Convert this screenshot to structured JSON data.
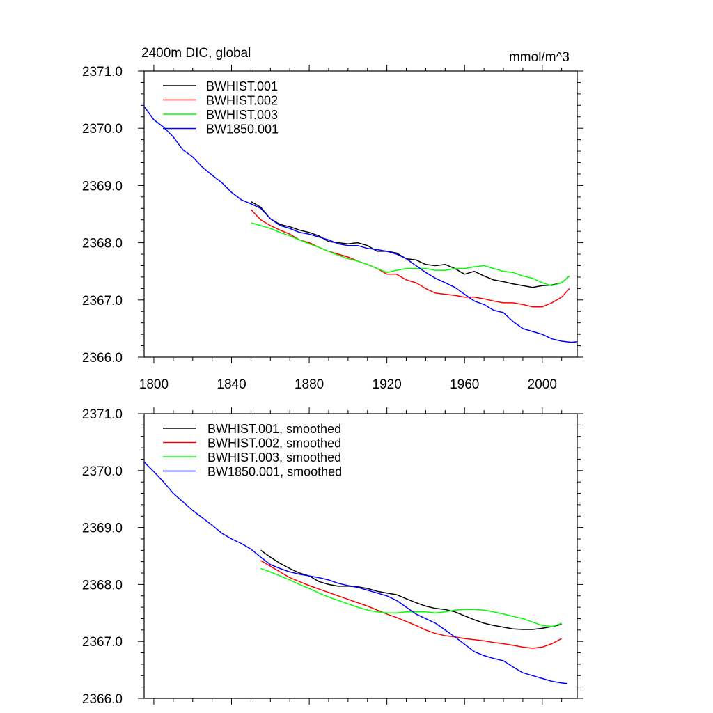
{
  "header": {
    "title": "2400m DIC, global",
    "units": "mmol/m^3"
  },
  "colors": {
    "BWHIST.001": "#000000",
    "BWHIST.002": "#ff0000",
    "BWHIST.003": "#00ff00",
    "BW1850.001": "#0000ff"
  },
  "chart_data": [
    {
      "type": "line",
      "title": "2400m DIC, global",
      "units": "mmol/m^3",
      "xlim": [
        1795,
        2018
      ],
      "ylim": [
        2366.0,
        2371.0
      ],
      "x_ticks": [
        "1800",
        "1840",
        "1880",
        "1920",
        "1960",
        "2000"
      ],
      "y_ticks": [
        "2366.0",
        "2367.0",
        "2368.0",
        "2369.0",
        "2370.0",
        "2371.0"
      ],
      "legend_position": "top-left",
      "series": [
        {
          "name": "BWHIST.001",
          "color": "#000000",
          "x": [
            1850,
            1855,
            1860,
            1865,
            1870,
            1875,
            1880,
            1885,
            1890,
            1895,
            1900,
            1905,
            1910,
            1915,
            1920,
            1925,
            1930,
            1935,
            1940,
            1945,
            1950,
            1955,
            1960,
            1965,
            1970,
            1975,
            1980,
            1985,
            1990,
            1995,
            2000,
            2005,
            2010,
            2014
          ],
          "y": [
            2368.72,
            2368.62,
            2368.42,
            2368.32,
            2368.28,
            2368.22,
            2368.18,
            2368.12,
            2368.02,
            2368.0,
            2367.98,
            2368.0,
            2367.95,
            2367.85,
            2367.85,
            2367.82,
            2367.72,
            2367.7,
            2367.62,
            2367.6,
            2367.62,
            2367.55,
            2367.45,
            2367.5,
            2367.42,
            2367.35,
            2367.32,
            2367.28,
            2367.25,
            2367.22,
            2367.25,
            2367.26,
            2367.3,
            2367.42
          ]
        },
        {
          "name": "BWHIST.002",
          "color": "#ff0000",
          "x": [
            1850,
            1855,
            1860,
            1865,
            1870,
            1875,
            1880,
            1885,
            1890,
            1895,
            1900,
            1905,
            1910,
            1915,
            1920,
            1925,
            1930,
            1935,
            1940,
            1945,
            1950,
            1955,
            1960,
            1965,
            1970,
            1975,
            1980,
            1985,
            1990,
            1995,
            2000,
            2005,
            2010,
            2014
          ],
          "y": [
            2368.58,
            2368.4,
            2368.3,
            2368.22,
            2368.15,
            2368.05,
            2368.0,
            2367.92,
            2367.85,
            2367.8,
            2367.75,
            2367.68,
            2367.62,
            2367.55,
            2367.45,
            2367.45,
            2367.35,
            2367.3,
            2367.2,
            2367.12,
            2367.1,
            2367.08,
            2367.05,
            2367.05,
            2367.02,
            2366.98,
            2366.95,
            2366.95,
            2366.92,
            2366.88,
            2366.88,
            2366.95,
            2367.05,
            2367.2
          ]
        },
        {
          "name": "BWHIST.003",
          "color": "#00ff00",
          "x": [
            1850,
            1855,
            1860,
            1865,
            1870,
            1875,
            1880,
            1885,
            1890,
            1895,
            1900,
            1905,
            1910,
            1915,
            1920,
            1925,
            1930,
            1935,
            1940,
            1945,
            1950,
            1955,
            1960,
            1965,
            1970,
            1975,
            1980,
            1985,
            1990,
            1995,
            2000,
            2005,
            2010,
            2014
          ],
          "y": [
            2368.35,
            2368.3,
            2368.25,
            2368.18,
            2368.12,
            2368.05,
            2367.98,
            2367.92,
            2367.85,
            2367.78,
            2367.72,
            2367.68,
            2367.62,
            2367.55,
            2367.48,
            2367.52,
            2367.55,
            2367.55,
            2367.55,
            2367.52,
            2367.52,
            2367.55,
            2367.55,
            2367.58,
            2367.6,
            2367.55,
            2367.5,
            2367.48,
            2367.42,
            2367.38,
            2367.3,
            2367.25,
            2367.3,
            2367.42
          ]
        },
        {
          "name": "BW1850.001",
          "color": "#0000ff",
          "x": [
            1795,
            1800,
            1805,
            1810,
            1815,
            1820,
            1825,
            1830,
            1835,
            1840,
            1845,
            1850,
            1855,
            1860,
            1865,
            1870,
            1875,
            1880,
            1885,
            1890,
            1895,
            1900,
            1905,
            1910,
            1915,
            1920,
            1925,
            1930,
            1935,
            1940,
            1945,
            1950,
            1955,
            1960,
            1965,
            1970,
            1975,
            1980,
            1985,
            1990,
            1995,
            2000,
            2005,
            2010,
            2015,
            2018
          ],
          "y": [
            2370.38,
            2370.15,
            2370.02,
            2369.85,
            2369.62,
            2369.5,
            2369.32,
            2369.18,
            2369.05,
            2368.88,
            2368.75,
            2368.68,
            2368.6,
            2368.42,
            2368.3,
            2368.25,
            2368.18,
            2368.15,
            2368.1,
            2368.05,
            2367.98,
            2367.95,
            2367.95,
            2367.9,
            2367.88,
            2367.85,
            2367.8,
            2367.72,
            2367.6,
            2367.48,
            2367.38,
            2367.3,
            2367.22,
            2367.1,
            2366.98,
            2366.92,
            2366.82,
            2366.78,
            2366.62,
            2366.5,
            2366.45,
            2366.4,
            2366.32,
            2366.28,
            2366.26,
            2366.27
          ]
        }
      ]
    },
    {
      "type": "line",
      "xlim": [
        1795,
        2018
      ],
      "ylim": [
        2366.0,
        2371.0
      ],
      "y_ticks": [
        "2366.0",
        "2367.0",
        "2368.0",
        "2369.0",
        "2370.0",
        "2371.0"
      ],
      "legend_position": "top-left",
      "series": [
        {
          "name": "BWHIST.001, smoothed",
          "color": "#000000",
          "x": [
            1855,
            1860,
            1865,
            1870,
            1875,
            1880,
            1885,
            1890,
            1895,
            1900,
            1905,
            1910,
            1915,
            1920,
            1925,
            1930,
            1935,
            1940,
            1945,
            1950,
            1955,
            1960,
            1965,
            1970,
            1975,
            1980,
            1985,
            1990,
            1995,
            2000,
            2005,
            2010
          ],
          "y": [
            2368.6,
            2368.48,
            2368.37,
            2368.28,
            2368.2,
            2368.15,
            2368.05,
            2368.0,
            2367.97,
            2367.97,
            2367.96,
            2367.93,
            2367.88,
            2367.85,
            2367.82,
            2367.75,
            2367.68,
            2367.62,
            2367.58,
            2367.56,
            2367.52,
            2367.45,
            2367.38,
            2367.32,
            2367.28,
            2367.25,
            2367.22,
            2367.21,
            2367.21,
            2367.23,
            2367.26,
            2367.3
          ]
        },
        {
          "name": "BWHIST.002, smoothed",
          "color": "#ff0000",
          "x": [
            1855,
            1860,
            1865,
            1870,
            1875,
            1880,
            1885,
            1890,
            1895,
            1900,
            1905,
            1910,
            1915,
            1920,
            1925,
            1930,
            1935,
            1940,
            1945,
            1950,
            1955,
            1960,
            1965,
            1970,
            1975,
            1980,
            1985,
            1990,
            1995,
            2000,
            2005,
            2010
          ],
          "y": [
            2368.42,
            2368.32,
            2368.22,
            2368.12,
            2368.05,
            2367.98,
            2367.92,
            2367.86,
            2367.8,
            2367.74,
            2367.68,
            2367.62,
            2367.55,
            2367.48,
            2367.42,
            2367.35,
            2367.28,
            2367.2,
            2367.14,
            2367.1,
            2367.08,
            2367.05,
            2367.03,
            2367.01,
            2366.98,
            2366.96,
            2366.93,
            2366.9,
            2366.88,
            2366.9,
            2366.96,
            2367.05
          ]
        },
        {
          "name": "BWHIST.003, smoothed",
          "color": "#00ff00",
          "x": [
            1855,
            1860,
            1865,
            1870,
            1875,
            1880,
            1885,
            1890,
            1895,
            1900,
            1905,
            1910,
            1915,
            1920,
            1925,
            1930,
            1935,
            1940,
            1945,
            1950,
            1955,
            1960,
            1965,
            1970,
            1975,
            1980,
            1985,
            1990,
            1995,
            2000,
            2005,
            2010
          ],
          "y": [
            2368.28,
            2368.22,
            2368.15,
            2368.08,
            2368.0,
            2367.93,
            2367.85,
            2367.78,
            2367.72,
            2367.66,
            2367.6,
            2367.55,
            2367.52,
            2367.5,
            2367.5,
            2367.52,
            2367.52,
            2367.52,
            2367.5,
            2367.52,
            2367.55,
            2367.56,
            2367.56,
            2367.55,
            2367.52,
            2367.48,
            2367.44,
            2367.4,
            2367.34,
            2367.28,
            2367.26,
            2367.32
          ]
        },
        {
          "name": "BW1850.001, smoothed",
          "color": "#0000ff",
          "x": [
            1795,
            1800,
            1805,
            1810,
            1815,
            1820,
            1825,
            1830,
            1835,
            1840,
            1845,
            1850,
            1855,
            1860,
            1865,
            1870,
            1875,
            1880,
            1885,
            1890,
            1895,
            1900,
            1905,
            1910,
            1915,
            1920,
            1925,
            1930,
            1935,
            1940,
            1945,
            1950,
            1955,
            1960,
            1965,
            1970,
            1975,
            1980,
            1985,
            1990,
            1995,
            2000,
            2005,
            2010,
            2013
          ],
          "y": [
            2370.15,
            2369.98,
            2369.8,
            2369.6,
            2369.45,
            2369.3,
            2369.17,
            2369.04,
            2368.9,
            2368.8,
            2368.72,
            2368.62,
            2368.48,
            2368.35,
            2368.28,
            2368.22,
            2368.18,
            2368.15,
            2368.12,
            2368.08,
            2368.02,
            2367.98,
            2367.95,
            2367.9,
            2367.85,
            2367.8,
            2367.72,
            2367.6,
            2367.48,
            2367.4,
            2367.32,
            2367.2,
            2367.08,
            2366.95,
            2366.82,
            2366.75,
            2366.7,
            2366.66,
            2366.55,
            2366.45,
            2366.4,
            2366.35,
            2366.3,
            2366.27,
            2366.26
          ]
        }
      ]
    }
  ]
}
